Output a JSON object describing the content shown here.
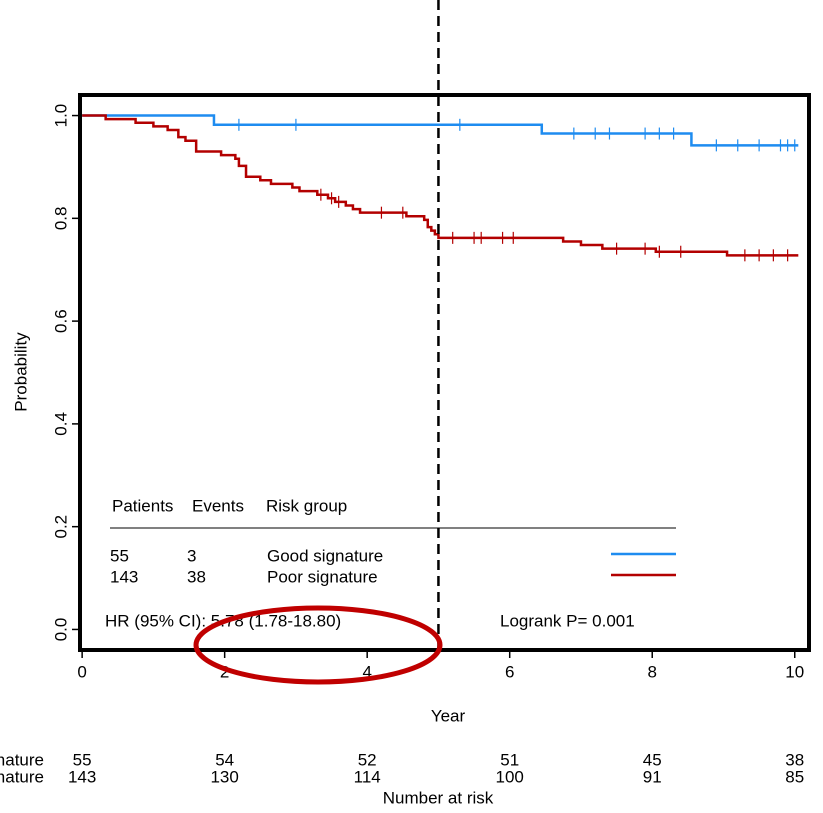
{
  "chart_data": {
    "type": "step",
    "xlabel": "Year",
    "ylabel": "Probability",
    "xlim": [
      -0.03,
      10.2
    ],
    "ylim": [
      -0.04,
      1.04
    ],
    "xticks": [
      0,
      2,
      4,
      6,
      8,
      10
    ],
    "yticks": [
      {
        "value": 0,
        "label": "0.0"
      },
      0.2,
      0.4,
      0.6,
      0.8,
      {
        "value": 1,
        "label": "1.0"
      }
    ],
    "vline": 5,
    "series": [
      {
        "name": "Good signature",
        "color": "#1e8cf0",
        "x": [
          0,
          1.85,
          6.45,
          8.55,
          10.05
        ],
        "values": [
          1,
          0.982,
          0.965,
          0.942,
          0.942
        ],
        "censor_x": [
          2.2,
          3.0,
          5.3,
          6.9,
          7.2,
          7.4,
          7.9,
          8.1,
          8.3,
          8.9,
          9.2,
          9.5,
          9.8,
          9.9,
          10.0
        ],
        "censor_values": [
          0.982,
          0.982,
          0.982,
          0.965,
          0.965,
          0.965,
          0.965,
          0.965,
          0.965,
          0.942,
          0.942,
          0.942,
          0.942,
          0.942,
          0.942
        ]
      },
      {
        "name": "Poor signature",
        "color": "#b30000",
        "x": [
          0,
          0.33,
          0.75,
          1.0,
          1.2,
          1.35,
          1.45,
          1.6,
          1.95,
          2.15,
          2.2,
          2.3,
          2.5,
          2.65,
          2.95,
          3.05,
          3.3,
          3.45,
          3.55,
          3.7,
          3.8,
          3.9,
          4.55,
          4.8,
          4.85,
          4.9,
          4.95,
          5.0,
          6.75,
          7.0,
          7.3,
          8.05,
          9.05,
          10.05
        ],
        "values": [
          1,
          0.993,
          0.986,
          0.979,
          0.972,
          0.958,
          0.951,
          0.93,
          0.923,
          0.916,
          0.902,
          0.881,
          0.874,
          0.867,
          0.86,
          0.853,
          0.846,
          0.839,
          0.832,
          0.825,
          0.818,
          0.811,
          0.804,
          0.797,
          0.783,
          0.776,
          0.769,
          0.762,
          0.755,
          0.748,
          0.741,
          0.735,
          0.728,
          0.728
        ],
        "censor_x": [
          3.35,
          3.5,
          3.6,
          4.2,
          4.5,
          5.2,
          5.5,
          5.6,
          5.9,
          6.05,
          7.5,
          7.9,
          8.1,
          8.4,
          9.3,
          9.5,
          9.7,
          9.9
        ],
        "censor_values": [
          0.846,
          0.839,
          0.832,
          0.811,
          0.811,
          0.762,
          0.762,
          0.762,
          0.762,
          0.762,
          0.741,
          0.741,
          0.735,
          0.735,
          0.728,
          0.728,
          0.728,
          0.728
        ]
      }
    ],
    "legend": {
      "headers": [
        "Patients",
        "Events",
        "Risk group"
      ],
      "rows": [
        {
          "patients": 55,
          "events": 3
        },
        {
          "patients": 143,
          "events": 38
        }
      ],
      "hr": "HR (95% CI): 5.78 (1.78-18.80)",
      "logrank": "Logrank P= 0.001"
    },
    "risk_table": {
      "title": "Number at risk",
      "x": [
        0,
        2,
        4,
        6,
        8,
        10
      ],
      "rows": [
        [
          55,
          54,
          52,
          51,
          45,
          38
        ],
        [
          143,
          130,
          114,
          100,
          91,
          85
        ]
      ]
    }
  }
}
